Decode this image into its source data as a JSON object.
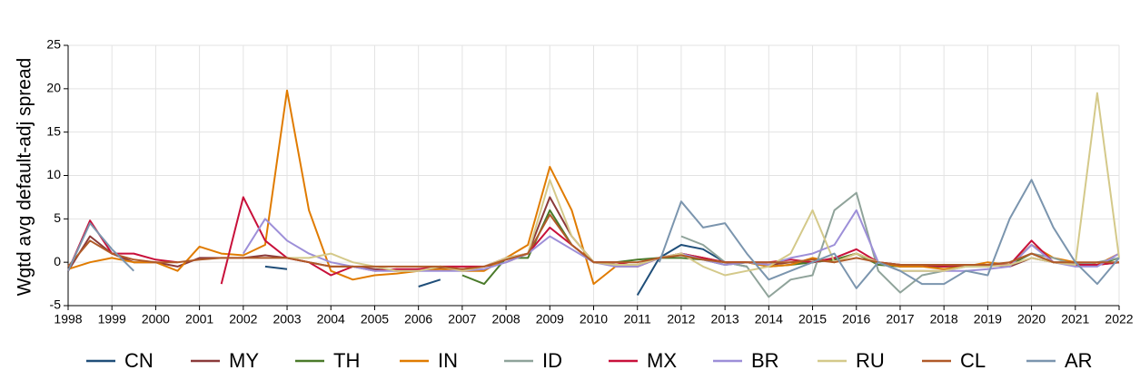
{
  "chart_data": {
    "type": "line",
    "y_label": "Wgtd avg default-adj spread",
    "x": [
      1998,
      1998.5,
      1999,
      1999.5,
      2000,
      2000.5,
      2001,
      2001.5,
      2002,
      2002.5,
      2003,
      2003.5,
      2004,
      2004.5,
      2005,
      2005.5,
      2006,
      2006.5,
      2007,
      2007.5,
      2008,
      2008.5,
      2009,
      2009.5,
      2010,
      2010.5,
      2011,
      2011.5,
      2012,
      2012.5,
      2013,
      2013.5,
      2014,
      2014.5,
      2015,
      2015.5,
      2016,
      2016.5,
      2017,
      2017.5,
      2018,
      2018.5,
      2019,
      2019.5,
      2020,
      2020.5,
      2021,
      2021.5,
      2022
    ],
    "xlim": [
      1998,
      2022
    ],
    "xticks": [
      1998,
      1999,
      2000,
      2001,
      2002,
      2003,
      2004,
      2005,
      2006,
      2007,
      2008,
      2009,
      2010,
      2011,
      2012,
      2013,
      2014,
      2015,
      2016,
      2017,
      2018,
      2019,
      2020,
      2021,
      2022
    ],
    "ylim": [
      -5,
      25
    ],
    "yticks": [
      -5,
      0,
      5,
      10,
      15,
      20,
      25
    ],
    "grid": true,
    "legend": "bottom",
    "series": [
      {
        "name": "CN",
        "color": "#1f4e79",
        "values": [
          null,
          null,
          null,
          null,
          null,
          null,
          null,
          null,
          null,
          -0.5,
          -0.8,
          null,
          null,
          null,
          null,
          null,
          -2.8,
          -2,
          null,
          null,
          null,
          null,
          null,
          null,
          null,
          null,
          -3.8,
          0.5,
          2,
          1.5,
          0,
          -0.5,
          null,
          null,
          null,
          null,
          null,
          null,
          null,
          null,
          null,
          null,
          null,
          null,
          null,
          null,
          null,
          null,
          null
        ]
      },
      {
        "name": "MY",
        "color": "#8b3a3a",
        "values": [
          -1,
          3,
          1,
          0,
          0,
          -0.5,
          0.5,
          0.5,
          0.5,
          0.8,
          0.5,
          0,
          -0.5,
          -0.5,
          -0.8,
          -1,
          -0.8,
          -0.7,
          -0.8,
          -0.5,
          0,
          1,
          7.5,
          3,
          0,
          -0.3,
          -0.3,
          0.5,
          1,
          0.5,
          0,
          0,
          -0.3,
          0,
          0,
          0.3,
          1,
          0,
          -0.3,
          -0.5,
          -0.5,
          -0.3,
          -0.3,
          -0.5,
          0.5,
          0,
          0,
          -0.3,
          0
        ]
      },
      {
        "name": "TH",
        "color": "#4a7a2a",
        "values": [
          null,
          null,
          null,
          null,
          null,
          null,
          null,
          null,
          null,
          null,
          null,
          null,
          null,
          null,
          null,
          null,
          null,
          null,
          -1.5,
          -2.5,
          0.5,
          0.5,
          6,
          2,
          0,
          0,
          0.3,
          0.5,
          0.5,
          0.3,
          -0.3,
          0,
          -0.5,
          -0.3,
          0,
          0.3,
          1,
          -0.3,
          -0.5,
          -0.5,
          -0.5,
          -0.5,
          -0.3,
          -0.3,
          1,
          0,
          -0.3,
          -0.3,
          0.5
        ]
      },
      {
        "name": "IN",
        "color": "#e07b00",
        "values": [
          -0.8,
          0,
          0.5,
          0,
          0,
          -1,
          1.8,
          1,
          0.8,
          2,
          19.8,
          6,
          -1,
          -2,
          -1.5,
          -1.3,
          -1,
          -0.8,
          -1,
          -1,
          0.5,
          2,
          11,
          6,
          -2.5,
          -0.5,
          -0.5,
          0.5,
          1,
          0.5,
          0,
          0,
          -0.5,
          -0.3,
          0.5,
          0,
          1,
          0,
          -0.5,
          -0.5,
          -0.8,
          -0.5,
          0,
          -0.3,
          2,
          0.5,
          0,
          -0.3,
          1
        ]
      },
      {
        "name": "ID",
        "color": "#8fa39a",
        "values": [
          null,
          null,
          null,
          null,
          null,
          null,
          null,
          null,
          null,
          null,
          null,
          null,
          null,
          null,
          null,
          null,
          null,
          null,
          null,
          null,
          null,
          null,
          null,
          null,
          null,
          null,
          null,
          null,
          3,
          2,
          0,
          -0.5,
          -4,
          -2,
          -1.5,
          6,
          8,
          -1,
          -3.5,
          -1.5,
          -1,
          -0.5,
          -0.5,
          0,
          1,
          0.5,
          -0.3,
          0,
          0.5
        ]
      },
      {
        "name": "MX",
        "color": "#c8103a",
        "values": [
          -1,
          4.8,
          1,
          1,
          0.3,
          0,
          null,
          -2.5,
          7.5,
          2.5,
          0.5,
          0,
          -1.5,
          -0.5,
          -1,
          -0.8,
          -0.8,
          -0.5,
          -0.5,
          -0.5,
          0.5,
          1,
          4,
          2,
          0,
          0,
          -0.5,
          0.5,
          1,
          0.5,
          0,
          0,
          0,
          0.3,
          0,
          0.5,
          1.5,
          0,
          -0.3,
          -0.3,
          -0.5,
          -0.3,
          -0.3,
          -0.3,
          2.5,
          0,
          -0.3,
          -0.3,
          0
        ]
      },
      {
        "name": "BR",
        "color": "#9d8fd8",
        "values": [
          null,
          null,
          null,
          null,
          null,
          null,
          null,
          null,
          1,
          5,
          2.5,
          1,
          0,
          -0.5,
          -1,
          -1,
          -1,
          -1,
          -1,
          -0.8,
          0,
          1,
          3,
          1.5,
          0,
          -0.5,
          -0.5,
          0.5,
          1,
          0.3,
          -0.3,
          0,
          -0.3,
          0.5,
          1,
          2,
          6,
          0,
          -1,
          -1,
          -1,
          -1,
          -0.8,
          -0.5,
          2,
          0,
          -0.5,
          -0.5,
          1
        ]
      },
      {
        "name": "RU",
        "color": "#d4c98a",
        "values": [
          null,
          null,
          null,
          null,
          null,
          null,
          null,
          null,
          null,
          null,
          0.5,
          0.5,
          1,
          0,
          -0.5,
          -1,
          -1,
          -0.5,
          -1,
          -0.5,
          0.5,
          1,
          9.5,
          3,
          0,
          -0.3,
          -0.3,
          0.5,
          1,
          -0.5,
          -1.5,
          -1,
          -0.5,
          1,
          6,
          0,
          1,
          0,
          -1,
          -1,
          -1,
          -0.5,
          -0.5,
          -0.3,
          0.5,
          0,
          -0.3,
          19.5,
          0.5
        ]
      },
      {
        "name": "CL",
        "color": "#b05a28",
        "values": [
          -0.5,
          2.5,
          1,
          0.3,
          0,
          0,
          0.3,
          0.5,
          0.5,
          0.5,
          0.5,
          0,
          -0.5,
          -0.5,
          -0.5,
          -0.5,
          -0.5,
          -0.5,
          -0.8,
          -0.5,
          0.3,
          1,
          5.5,
          2,
          0,
          0,
          0,
          0.5,
          0.8,
          0.3,
          0,
          0,
          0,
          0,
          0.3,
          0,
          0.5,
          0,
          -0.3,
          -0.3,
          -0.3,
          -0.3,
          -0.3,
          0,
          1,
          0,
          0,
          0,
          0
        ]
      },
      {
        "name": "AR",
        "color": "#7b95ae",
        "values": [
          -1,
          4.5,
          1.5,
          -1,
          null,
          null,
          null,
          null,
          null,
          null,
          null,
          null,
          null,
          null,
          null,
          null,
          null,
          null,
          null,
          null,
          null,
          null,
          null,
          null,
          null,
          null,
          null,
          0,
          7,
          4,
          4.5,
          1,
          -2,
          -1,
          0,
          1,
          -3,
          0,
          -1,
          -2.5,
          -2.5,
          -1,
          -1.5,
          5,
          9.5,
          4,
          0,
          -2.5,
          0.5
        ]
      }
    ]
  }
}
